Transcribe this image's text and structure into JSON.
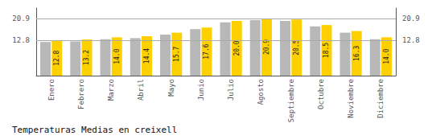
{
  "chart_data": {
    "type": "bar",
    "title": "Temperaturas Medias en creixell",
    "categories": [
      "Enero",
      "Febrero",
      "Marzo",
      "Abril",
      "Mayo",
      "Junio",
      "Julio",
      "Agosto",
      "Septiembre",
      "Octubre",
      "Noviembre",
      "Diciembre"
    ],
    "series": [
      {
        "color": "#B8B8B8",
        "values": [
          12.3,
          12.5,
          13.3,
          13.7,
          15.0,
          17.0,
          19.5,
          20.3,
          20.0,
          18.0,
          15.7,
          13.3
        ]
      },
      {
        "color": "#FFD000",
        "values": [
          12.8,
          13.2,
          14.0,
          14.4,
          15.7,
          17.6,
          20.0,
          20.9,
          20.5,
          18.5,
          16.3,
          14.0
        ],
        "value_labels": [
          "12.8",
          "13.2",
          "14.0",
          "14.4",
          "15.7",
          "17.6",
          "20.0",
          "20.9",
          "20.5",
          "18.5",
          "16.3",
          "14.0"
        ],
        "data_labels": true
      }
    ],
    "ylim": [
      0,
      24.7
    ],
    "yticks": [
      12.8,
      20.9
    ],
    "y2lim": [
      0,
      24.7
    ],
    "y2ticks": [
      12.8,
      20.9
    ],
    "grid": true
  }
}
